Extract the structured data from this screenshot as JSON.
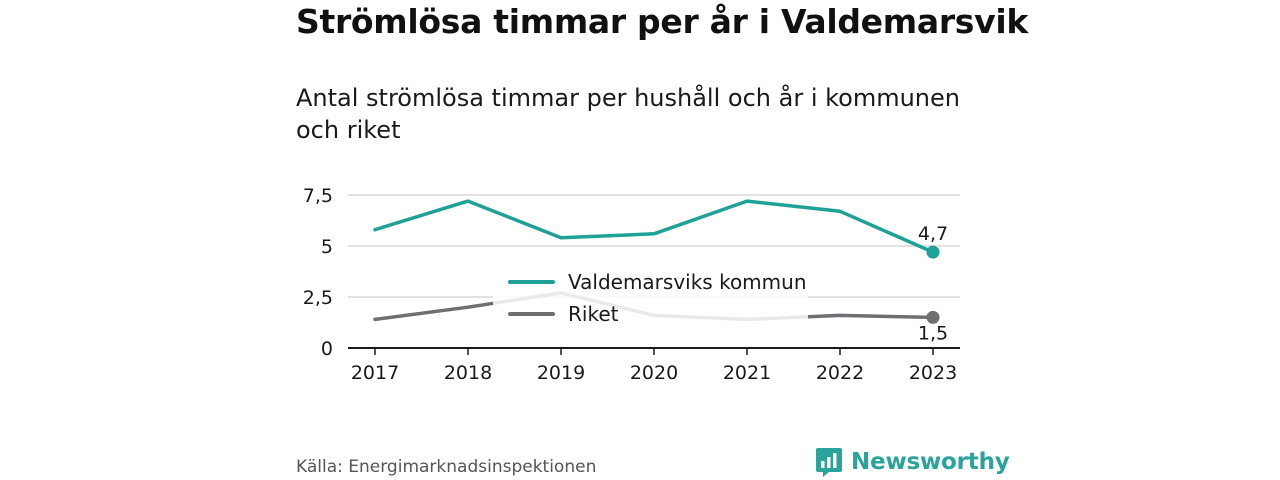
{
  "header": {
    "title": "Strömlösa timmar per år i Valdemarsvik",
    "subtitle": "Antal strömlösa timmar per hushåll och år i kommunen och riket"
  },
  "footer": {
    "source": "Källa: Energimarknadsinspektionen",
    "brand": "Newsworthy",
    "brand_icon": "bar-chart-icon"
  },
  "colors": {
    "primary": "#1ea197",
    "secondary": "#6e6e73",
    "grid": "#d9d9d9",
    "axis": "#1a1a1a",
    "brand": "#2aa39a"
  },
  "chart_data": {
    "type": "line",
    "x": [
      "2017",
      "2018",
      "2019",
      "2020",
      "2021",
      "2022",
      "2023"
    ],
    "series": [
      {
        "name": "Valdemarsviks kommun",
        "values": [
          5.8,
          7.2,
          5.4,
          5.6,
          7.2,
          6.7,
          4.7
        ],
        "end_label": "4,7",
        "color": "#1ea197"
      },
      {
        "name": "Riket",
        "values": [
          1.4,
          2.0,
          2.7,
          1.6,
          1.4,
          1.6,
          1.5
        ],
        "end_label": "1,5",
        "color": "#6e6e73"
      }
    ],
    "ylim": [
      0,
      7.5
    ],
    "yticks": [
      {
        "value": 0,
        "label": "0"
      },
      {
        "value": 2.5,
        "label": "2,5"
      },
      {
        "value": 5,
        "label": "5"
      },
      {
        "value": 7.5,
        "label": "7,5"
      }
    ],
    "grid": true,
    "legend_position": "center"
  }
}
